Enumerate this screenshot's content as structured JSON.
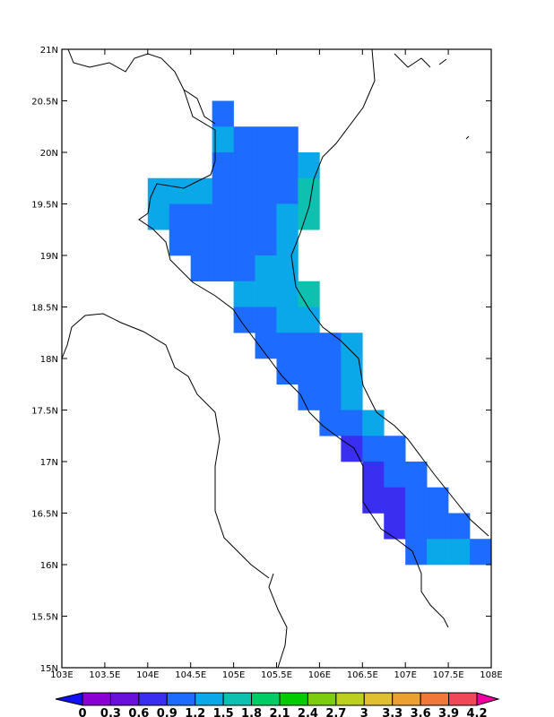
{
  "chart_data": {
    "type": "map",
    "xlim": [
      103,
      108
    ],
    "ylim": [
      15,
      21
    ],
    "xticks": [
      {
        "value": 103,
        "label": "103E"
      },
      {
        "value": 103.5,
        "label": "103.5E"
      },
      {
        "value": 104,
        "label": "104E"
      },
      {
        "value": 104.5,
        "label": "104.5E"
      },
      {
        "value": 105,
        "label": "105E"
      },
      {
        "value": 105.5,
        "label": "105.5E"
      },
      {
        "value": 106,
        "label": "106E"
      },
      {
        "value": 106.5,
        "label": "106.5E"
      },
      {
        "value": 107,
        "label": "107E"
      },
      {
        "value": 107.5,
        "label": "107.5E"
      },
      {
        "value": 108,
        "label": "108E"
      }
    ],
    "yticks": [
      {
        "value": 15,
        "label": "15N"
      },
      {
        "value": 15.5,
        "label": "15.5N"
      },
      {
        "value": 16,
        "label": "16N"
      },
      {
        "value": 16.5,
        "label": "16.5N"
      },
      {
        "value": 17,
        "label": "17N"
      },
      {
        "value": 17.5,
        "label": "17.5N"
      },
      {
        "value": 18,
        "label": "18N"
      },
      {
        "value": 18.5,
        "label": "18.5N"
      },
      {
        "value": 19,
        "label": "19N"
      },
      {
        "value": 19.5,
        "label": "19.5N"
      },
      {
        "value": 20,
        "label": "20N"
      },
      {
        "value": 20.5,
        "label": "20.5N"
      },
      {
        "value": 21,
        "label": "21N"
      }
    ],
    "cell_size": 0.25,
    "grid": {
      "lon": [
        104.875,
        104.875,
        105.125,
        105.375,
        105.625,
        104.875,
        105.125,
        105.375,
        105.625,
        105.875,
        104.125,
        104.375,
        104.625,
        104.875,
        105.125,
        105.375,
        105.625,
        105.875,
        104.125,
        104.375,
        104.625,
        104.875,
        105.125,
        105.375,
        105.625,
        105.875,
        104.375,
        104.625,
        104.875,
        105.125,
        105.375,
        105.625,
        104.625,
        104.875,
        105.125,
        105.375,
        105.625,
        105.125,
        105.375,
        105.625,
        105.875,
        105.125,
        105.375,
        105.625,
        105.875,
        105.375,
        105.625,
        105.875,
        106.125,
        106.375,
        105.625,
        105.875,
        106.125,
        106.375,
        105.875,
        106.125,
        106.375,
        106.125,
        106.375,
        106.625,
        106.375,
        106.625,
        106.875,
        106.625,
        106.875,
        107.125,
        106.625,
        106.875,
        107.125,
        107.375,
        106.875,
        107.125,
        107.375,
        107.625,
        107.125,
        107.375,
        107.625,
        107.875
      ],
      "lat": [
        20.375,
        20.125,
        20.125,
        20.125,
        20.125,
        19.875,
        19.875,
        19.875,
        19.875,
        19.875,
        19.625,
        19.625,
        19.625,
        19.625,
        19.625,
        19.625,
        19.625,
        19.625,
        19.375,
        19.375,
        19.375,
        19.375,
        19.375,
        19.375,
        19.375,
        19.375,
        19.125,
        19.125,
        19.125,
        19.125,
        19.125,
        19.125,
        18.875,
        18.875,
        18.875,
        18.875,
        18.875,
        18.625,
        18.625,
        18.625,
        18.625,
        18.375,
        18.375,
        18.375,
        18.375,
        18.125,
        18.125,
        18.125,
        18.125,
        18.125,
        17.875,
        17.875,
        17.875,
        17.875,
        17.625,
        17.625,
        17.625,
        17.375,
        17.375,
        17.375,
        17.125,
        17.125,
        17.125,
        16.875,
        16.875,
        16.875,
        16.625,
        16.625,
        16.625,
        16.625,
        16.375,
        16.375,
        16.375,
        16.375,
        16.125,
        16.125,
        16.125,
        16.125
      ],
      "values": [
        1.05,
        1.35,
        1.05,
        1.05,
        1.05,
        1.05,
        1.05,
        1.05,
        1.05,
        1.35,
        1.35,
        1.35,
        1.35,
        1.05,
        1.05,
        1.05,
        1.05,
        1.65,
        1.35,
        1.05,
        1.05,
        1.05,
        1.05,
        1.05,
        1.35,
        1.65,
        1.05,
        1.05,
        1.05,
        1.05,
        1.05,
        1.35,
        1.05,
        1.05,
        1.05,
        1.35,
        1.35,
        1.35,
        1.35,
        1.35,
        1.65,
        1.05,
        1.05,
        1.35,
        1.35,
        1.05,
        1.05,
        1.05,
        1.05,
        1.35,
        1.05,
        1.05,
        1.05,
        1.35,
        1.05,
        1.05,
        1.35,
        1.05,
        1.05,
        1.35,
        0.75,
        1.05,
        1.05,
        0.75,
        1.05,
        1.05,
        0.75,
        0.75,
        1.05,
        1.05,
        0.75,
        1.05,
        1.05,
        1.05,
        1.05,
        1.35,
        1.35,
        1.05
      ]
    },
    "colorbar": {
      "levels": [
        0,
        0.3,
        0.6,
        0.9,
        1.2,
        1.5,
        1.8,
        2.1,
        2.4,
        2.7,
        3,
        3.3,
        3.6,
        3.9,
        4.2
      ],
      "colors": [
        "#1010f0",
        "#8a00d4",
        "#6a10dc",
        "#3a2ff0",
        "#1e6cff",
        "#0aa8e8",
        "#0dc0b0",
        "#00cc66",
        "#00cc00",
        "#7ccc10",
        "#bcd020",
        "#e0c030",
        "#eba030",
        "#f07838",
        "#f04858",
        "#f000a0"
      ]
    }
  }
}
